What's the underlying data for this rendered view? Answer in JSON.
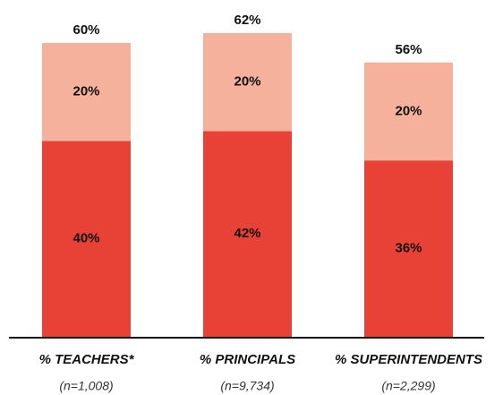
{
  "chart_data": {
    "type": "stacked_bar",
    "categories": [
      "% TEACHERS*",
      "% PRINCIPALS",
      "% SUPERINTENDENTS"
    ],
    "sample_sizes": [
      "(n=1,008)",
      "(n=9,734)",
      "(n=2,299)"
    ],
    "series": [
      {
        "color": "#e84236",
        "values": [
          40,
          42,
          36
        ],
        "value_labels": [
          "40%",
          "42%",
          "36%"
        ]
      },
      {
        "color": "#f5b19b",
        "values": [
          20,
          20,
          20
        ],
        "value_labels": [
          "20%",
          "20%",
          "20%"
        ]
      }
    ],
    "totals": {
      "values": [
        60,
        62,
        56
      ],
      "value_labels": [
        "60%",
        "62%",
        "56%"
      ]
    }
  }
}
